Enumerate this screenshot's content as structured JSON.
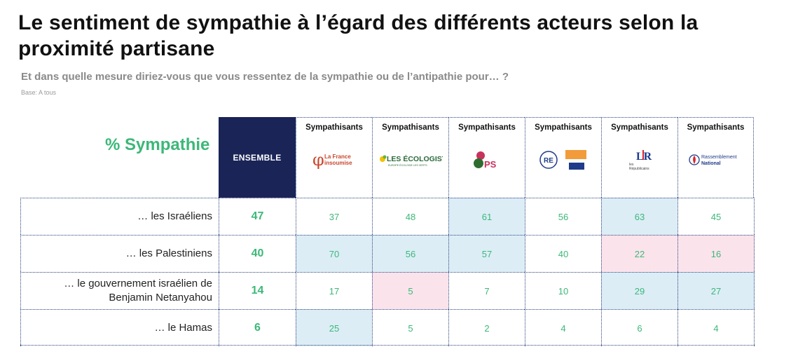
{
  "title": "Le sentiment de sympathie à l’égard des différents acteurs selon la proximité partisane",
  "question": "Et dans quelle mesure diriez-vous que vous ressentez de la sympathie ou de l’antipathie pour… ?",
  "base": "Base: A tous",
  "metric_label": "% Sympathie",
  "colors": {
    "green": "#3cb878",
    "navy": "#1a2457",
    "blue_fill": "#dcedf6",
    "pink_fill": "#fbe3ec"
  },
  "logos": {
    "lfi": {
      "line1": "La France",
      "line2": "insoumise"
    },
    "eco": {
      "text": "LES ÉCOLOGISTES",
      "sub": "EUROPE ÉCOLOGIE LES VERTS"
    },
    "ps": {
      "text": "PS"
    },
    "re": {
      "text": "RE"
    },
    "lr": {
      "mark": "LR",
      "line1": "les",
      "line2": "Républicains"
    },
    "rn": {
      "line1": "Rassemblement",
      "line2": "National"
    }
  },
  "chart_data": {
    "type": "table",
    "title": "Le sentiment de sympathie à l’égard des différents acteurs selon la proximité partisane",
    "ylabel": "% Sympathie",
    "columns": [
      {
        "id": "ensemble",
        "label": "ENSEMBLE"
      },
      {
        "id": "lfi",
        "label": "Sympathisants",
        "party": "La France insoumise"
      },
      {
        "id": "eco",
        "label": "Sympathisants",
        "party": "Les Écologistes"
      },
      {
        "id": "ps",
        "label": "Sympathisants",
        "party": "PS"
      },
      {
        "id": "re",
        "label": "Sympathisants",
        "party": "Renaissance / Ensemble"
      },
      {
        "id": "lr",
        "label": "Sympathisants",
        "party": "Les Républicains"
      },
      {
        "id": "rn",
        "label": "Sympathisants",
        "party": "Rassemblement National"
      }
    ],
    "rows": [
      {
        "label": "… les Israéliens",
        "values": [
          47,
          37,
          48,
          61,
          56,
          63,
          45
        ],
        "highlight": [
          "",
          "",
          "",
          "blue",
          "",
          "blue",
          ""
        ]
      },
      {
        "label": "… les Palestiniens",
        "values": [
          40,
          70,
          56,
          57,
          40,
          22,
          16
        ],
        "highlight": [
          "",
          "blue",
          "blue",
          "blue",
          "",
          "pink",
          "pink"
        ]
      },
      {
        "label": "… le gouvernement israélien de Benjamin Netanyahou",
        "values": [
          14,
          17,
          5,
          7,
          10,
          29,
          27
        ],
        "highlight": [
          "",
          "",
          "pink",
          "",
          "",
          "blue",
          "blue"
        ]
      },
      {
        "label": "… le Hamas",
        "values": [
          6,
          25,
          5,
          2,
          4,
          6,
          4
        ],
        "highlight": [
          "",
          "blue",
          "",
          "",
          "",
          "",
          ""
        ]
      }
    ]
  }
}
